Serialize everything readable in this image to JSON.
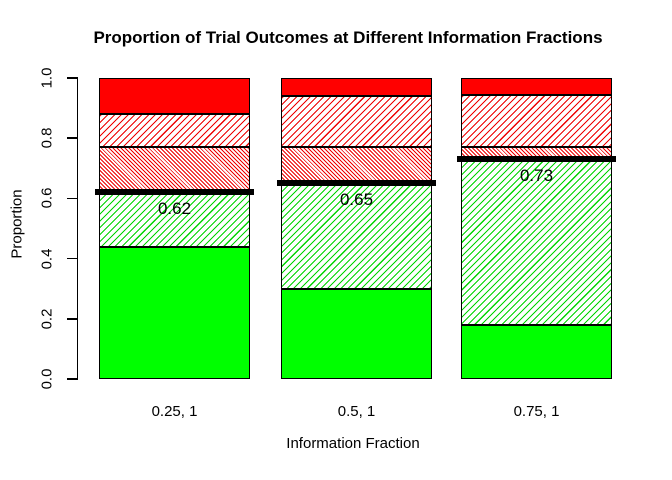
{
  "title": "Proportion of Trial Outcomes at Different Information Fractions",
  "x_axis": {
    "label": "Information Fraction"
  },
  "y_axis": {
    "label": "Proportion",
    "ticks": [
      "0.0",
      "0.2",
      "0.4",
      "0.6",
      "0.8",
      "1.0"
    ]
  },
  "chart_data": {
    "type": "bar",
    "stacked": true,
    "title": "Proportion of Trial Outcomes at Different Information Fractions",
    "xlabel": "Information Fraction",
    "ylabel": "Proportion",
    "ylim": [
      0.0,
      1.0
    ],
    "y_tick_values": [
      0.0,
      0.2,
      0.4,
      0.6,
      0.8,
      1.0
    ],
    "grid": false,
    "legend": "none",
    "categories": [
      "0.25, 1",
      "0.5, 1",
      "0.75, 1"
    ],
    "segments_order_bottom_to_top": [
      {
        "key": "green_solid",
        "pattern": "solid",
        "color": "#00FF00"
      },
      {
        "key": "green_hatched",
        "pattern": "diagonal-hatch-/",
        "color": "#00FF00"
      },
      {
        "key": "red_dense_hatched",
        "pattern": "dense-diagonal-hatch-\\",
        "color": "#FF0000"
      },
      {
        "key": "red_sparse_hatched",
        "pattern": "diagonal-hatch-/",
        "color": "#FF0000"
      },
      {
        "key": "red_solid",
        "pattern": "solid",
        "color": "#FF0000"
      }
    ],
    "bars": [
      {
        "category": "0.25, 1",
        "cumulative_tops": [
          0.44,
          0.62,
          0.77,
          0.88,
          1.0
        ],
        "marker_value": 0.62,
        "marker_label": "0.62"
      },
      {
        "category": "0.5, 1",
        "cumulative_tops": [
          0.3,
          0.65,
          0.77,
          0.94,
          1.0
        ],
        "marker_value": 0.65,
        "marker_label": "0.65"
      },
      {
        "category": "0.75, 1",
        "cumulative_tops": [
          0.18,
          0.73,
          0.77,
          0.945,
          1.0
        ],
        "marker_value": 0.73,
        "marker_label": "0.73"
      }
    ],
    "marker_line": {
      "color": "#000000",
      "meaning_text_shown": false
    }
  },
  "colors": {
    "green": "#00FF00",
    "red": "#FF0000",
    "marker": "#000000",
    "background": "#FFFFFF"
  }
}
